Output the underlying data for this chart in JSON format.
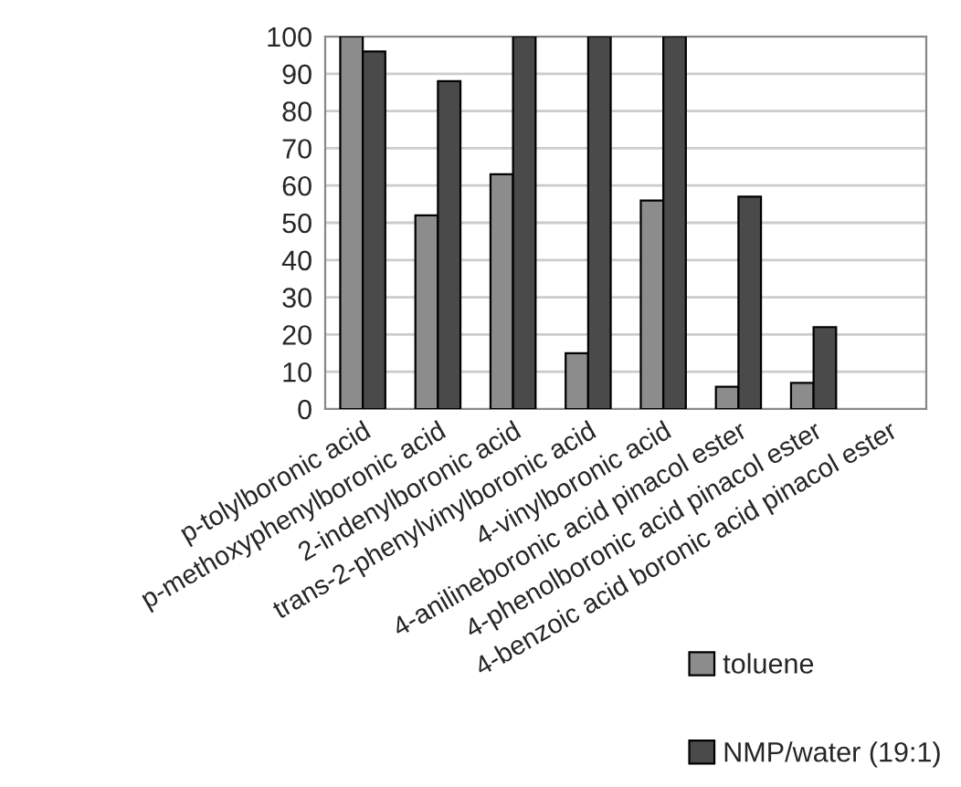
{
  "chart_data": {
    "type": "bar",
    "categories": [
      "p-tolylboronic acid",
      "p-methoxyphenylboronic acid",
      "2-indenylboronic acid",
      "trans-2-phenylvinylboronic acid",
      "4-vinylboronic acid",
      "4-anilineboronic acid pinacol ester",
      "4-phenolboronic acid pinacol ester",
      "4-benzoic acid boronic acid pinacol ester"
    ],
    "series": [
      {
        "name": "toluene",
        "color": "#8c8c8c",
        "values": [
          100,
          52,
          63,
          15,
          56,
          6,
          7,
          null
        ]
      },
      {
        "name": "NMP/water (19:1)",
        "color": "#4a4a4a",
        "values": [
          96,
          88,
          100,
          100,
          100,
          57,
          22,
          null
        ]
      }
    ],
    "ylim": [
      0,
      100
    ],
    "yticks": [
      0,
      10,
      20,
      30,
      40,
      50,
      60,
      70,
      80,
      90,
      100
    ],
    "grid": "y",
    "legend": "bottom right"
  }
}
